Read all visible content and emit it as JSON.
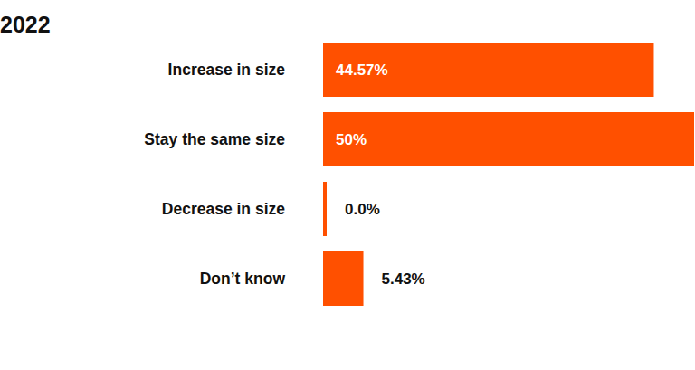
{
  "chart_data": {
    "type": "bar",
    "title": "2022",
    "orientation": "horizontal",
    "categories": [
      "Increase in size",
      "Stay the same size",
      "Decrease in size",
      "Don’t know"
    ],
    "values": [
      44.57,
      50,
      0,
      5.43
    ],
    "value_labels": [
      "44.57%",
      "50%",
      "0.0%",
      "5.43%"
    ],
    "color": "#ff5000",
    "xlim": [
      0,
      50
    ],
    "data_labels": true,
    "tick_labels": "y",
    "grid": false
  }
}
